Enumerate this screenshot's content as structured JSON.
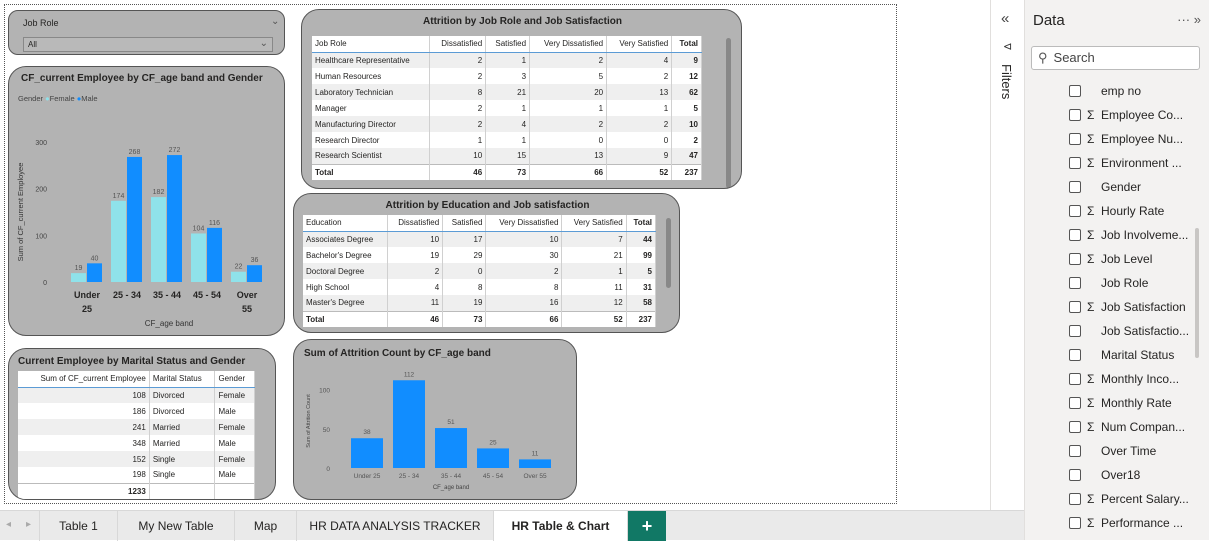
{
  "slicer": {
    "label": "Job Role",
    "value": "All"
  },
  "chart1": {
    "title": "CF_current Employee by CF_age band and Gender",
    "legend_label": "Gender",
    "chart_data": {
      "type": "bar",
      "title": "CF_current Employee by CF_age band and Gender",
      "xlabel": "CF_age band",
      "ylabel": "Sum of CF_current Employee",
      "categories": [
        "Under 25",
        "25 - 34",
        "35 - 44",
        "45 - 54",
        "Over 55"
      ],
      "category_lines": [
        [
          "Under",
          "25"
        ],
        [
          "25 - 34"
        ],
        [
          "35 - 44"
        ],
        [
          "45 - 54"
        ],
        [
          "Over",
          "55"
        ]
      ],
      "series": [
        {
          "name": "Female",
          "values": [
            19,
            174,
            182,
            104,
            22
          ],
          "color": "#8fe2ea"
        },
        {
          "name": "Male",
          "values": [
            40,
            268,
            272,
            116,
            36
          ],
          "color": "#118dff"
        }
      ],
      "yticks": [
        "0",
        "100",
        "200",
        "300"
      ],
      "ylim": [
        0,
        300
      ],
      "legend_position": "top-left"
    }
  },
  "table1": {
    "title": "Attrition by Job Role and Job Satisfaction",
    "headers": [
      "Job Role",
      "Dissatisfied",
      "Satisfied",
      "Very Dissatisfied",
      "Very Satisfied",
      "Total"
    ],
    "rows": [
      [
        "Healthcare Representative",
        "2",
        "1",
        "2",
        "4",
        "9"
      ],
      [
        "Human Resources",
        "2",
        "3",
        "5",
        "2",
        "12"
      ],
      [
        "Laboratory Technician",
        "8",
        "21",
        "20",
        "13",
        "62"
      ],
      [
        "Manager",
        "2",
        "1",
        "1",
        "1",
        "5"
      ],
      [
        "Manufacturing Director",
        "2",
        "4",
        "2",
        "2",
        "10"
      ],
      [
        "Research Director",
        "1",
        "1",
        "0",
        "0",
        "2"
      ],
      [
        "Research Scientist",
        "10",
        "15",
        "13",
        "9",
        "47"
      ]
    ],
    "total": [
      "Total",
      "46",
      "73",
      "66",
      "52",
      "237"
    ]
  },
  "table2": {
    "title": "Attrition by Education and Job satisfaction",
    "headers": [
      "Education",
      "Dissatisfied",
      "Satisfied",
      "Very Dissatisfied",
      "Very Satisfied",
      "Total"
    ],
    "rows": [
      [
        "Associates Degree",
        "10",
        "17",
        "10",
        "7",
        "44"
      ],
      [
        "Bachelor's Degree",
        "19",
        "29",
        "30",
        "21",
        "99"
      ],
      [
        "Doctoral Degree",
        "2",
        "0",
        "2",
        "1",
        "5"
      ],
      [
        "High School",
        "4",
        "8",
        "8",
        "11",
        "31"
      ],
      [
        "Master's Degree",
        "11",
        "19",
        "16",
        "12",
        "58"
      ]
    ],
    "total": [
      "Total",
      "46",
      "73",
      "66",
      "52",
      "237"
    ]
  },
  "table3": {
    "title": "Current Employee by Marital Status and Gender",
    "headers": [
      "Sum of CF_current Employee",
      "Marital Status",
      "Gender"
    ],
    "rows": [
      [
        "108",
        "Divorced",
        "Female"
      ],
      [
        "186",
        "Divorced",
        "Male"
      ],
      [
        "241",
        "Married",
        "Female"
      ],
      [
        "348",
        "Married",
        "Male"
      ],
      [
        "152",
        "Single",
        "Female"
      ],
      [
        "198",
        "Single",
        "Male"
      ]
    ],
    "total": [
      "1233",
      "",
      ""
    ]
  },
  "chart2": {
    "title": "Sum of Attrition Count by CF_age band",
    "chart_data": {
      "type": "bar",
      "title": "Sum of Attrition Count by CF_age band",
      "xlabel": "CF_age band",
      "ylabel": "Sum of Attrition Count",
      "categories": [
        "Under 25",
        "25 - 34",
        "35 - 44",
        "45 - 54",
        "Over 55"
      ],
      "values": [
        38,
        112,
        51,
        25,
        11
      ],
      "color": "#118dff",
      "yticks": [
        "0",
        "50",
        "100"
      ],
      "ylim": [
        0,
        120
      ]
    }
  },
  "filters_pane": {
    "label": "Filters"
  },
  "data_pane": {
    "title": "Data",
    "more": "···",
    "expand": "»",
    "search_placeholder": "Search",
    "fields": [
      {
        "name": "emp no",
        "sigma": false
      },
      {
        "name": "Employee Co...",
        "sigma": true
      },
      {
        "name": "Employee Nu...",
        "sigma": true
      },
      {
        "name": "Environment ...",
        "sigma": true
      },
      {
        "name": "Gender",
        "sigma": false
      },
      {
        "name": "Hourly Rate",
        "sigma": true
      },
      {
        "name": "Job Involveme...",
        "sigma": true
      },
      {
        "name": "Job Level",
        "sigma": true
      },
      {
        "name": "Job Role",
        "sigma": false
      },
      {
        "name": "Job Satisfaction",
        "sigma": true
      },
      {
        "name": "Job Satisfactio...",
        "sigma": false
      },
      {
        "name": "Marital Status",
        "sigma": false
      },
      {
        "name": "Monthly Inco...",
        "sigma": true
      },
      {
        "name": "Monthly Rate",
        "sigma": true
      },
      {
        "name": "Num Compan...",
        "sigma": true
      },
      {
        "name": "Over Time",
        "sigma": false
      },
      {
        "name": "Over18",
        "sigma": false
      },
      {
        "name": "Percent Salary...",
        "sigma": true
      },
      {
        "name": "Performance ...",
        "sigma": true
      }
    ]
  },
  "tabs": {
    "items": [
      "Table 1",
      "My New Table",
      "Map",
      "HR DATA ANALYSIS TRACKER",
      "HR Table & Chart"
    ],
    "active": "HR Table & Chart",
    "add_label": "+"
  }
}
